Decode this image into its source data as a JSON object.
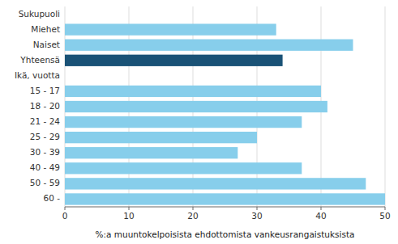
{
  "chart_data": {
    "type": "bar",
    "orientation": "horizontal",
    "categories": [
      "Sukupuoli",
      "Miehet",
      "Naiset",
      "Yhteensä",
      "Ikä, vuotta",
      "15 - 17",
      "18 - 20",
      "21 - 24",
      "25 - 29",
      "30 - 39",
      "40 - 49",
      "50 - 59",
      "60 -"
    ],
    "values": [
      null,
      33,
      45,
      34,
      null,
      40,
      41,
      37,
      30,
      27,
      37,
      47,
      50
    ],
    "colors": [
      null,
      "#87CEEB",
      "#87CEEB",
      "#1a5276",
      null,
      "#87CEEB",
      "#87CEEB",
      "#87CEEB",
      "#87CEEB",
      "#87CEEB",
      "#87CEEB",
      "#87CEEB",
      "#87CEEB"
    ],
    "xlabel": "%:a muuntokelpoisista ehdottomista vankeusrangaistuksista",
    "xlim": [
      0,
      50
    ],
    "xticks": [
      0,
      10,
      20,
      30,
      40,
      50
    ],
    "grid": true
  }
}
